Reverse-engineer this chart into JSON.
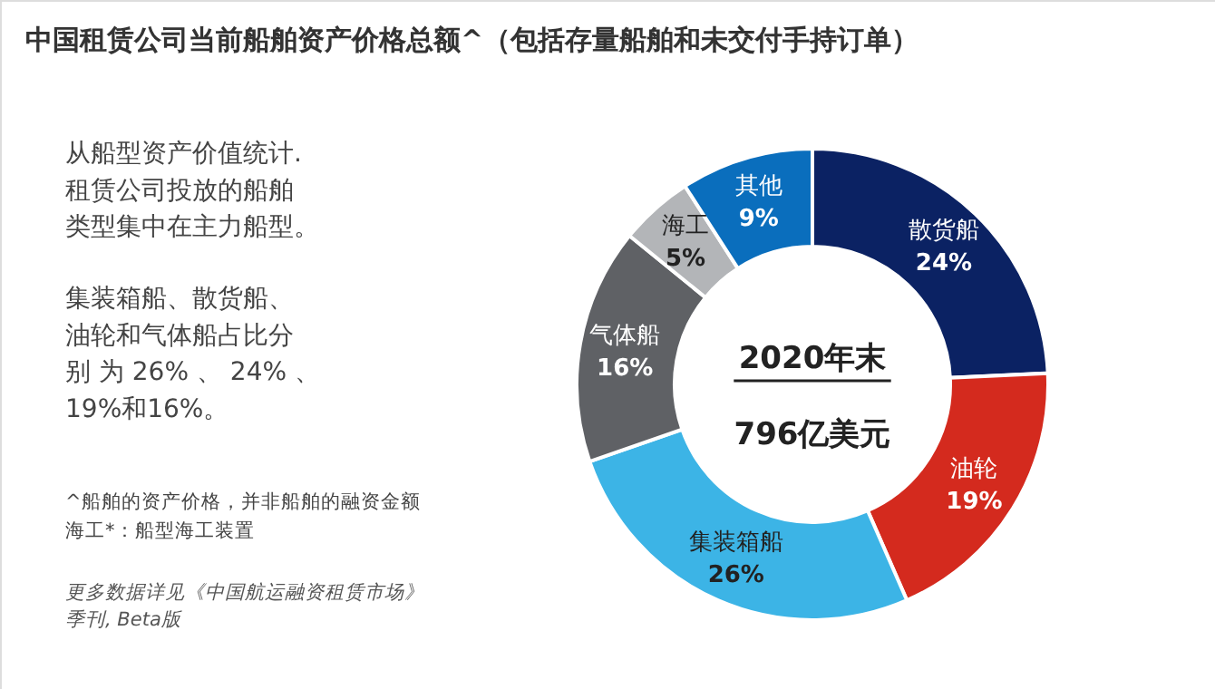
{
  "chart_data": {
    "type": "donut",
    "title": "中国租赁公司当前船舶资产价格总额^（包括存量船舶和未交付手持订单）",
    "categories": [
      "散货船",
      "油轮",
      "集装箱船",
      "气体船",
      "海工",
      "其他"
    ],
    "values": [
      24,
      19,
      26,
      16,
      5,
      9
    ],
    "value_labels": [
      "24%",
      "19%",
      "26%",
      "16%",
      "5%",
      "9%"
    ],
    "colors": [
      "#0b2263",
      "#d42a1e",
      "#3cb4e6",
      "#5f6165",
      "#b3b5b8",
      "#0a6ebd"
    ],
    "legend": false,
    "annotations": [
      "2020年末",
      "796亿美元",
      "从船型资产价值统计.租赁公司投放的船舶类型集中在主力船型。",
      "集装箱船、散货船、油轮和气体船占比分别 为 26% 、 24% 、19%和16%。",
      "^船舶的资产价格，并非船舶的融资金额",
      "海工*：船型海工装置",
      "更多数据详见《中国航运融资租赁市场》季刊, Beta版"
    ]
  }
}
